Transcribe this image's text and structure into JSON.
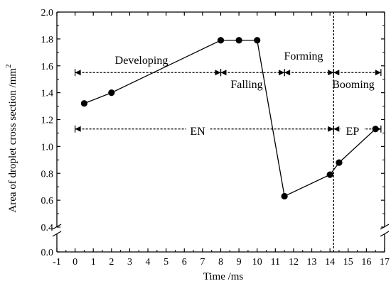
{
  "chart_data": {
    "type": "line",
    "xlabel": "Time /ms",
    "ylabel": "Area of droplet cross section /mm",
    "ylabel_sup": "2",
    "xlim": [
      -1,
      17
    ],
    "ylim": [
      0.0,
      2.0
    ],
    "y_axis_break": [
      0.0,
      0.4
    ],
    "grid": false,
    "x_ticks": [
      "-1",
      "0",
      "1",
      "2",
      "3",
      "4",
      "5",
      "6",
      "7",
      "8",
      "9",
      "10",
      "11",
      "12",
      "13",
      "14",
      "15",
      "16",
      "17"
    ],
    "y_ticks": [
      "0.0",
      "0.4",
      "0.6",
      "0.8",
      "1.0",
      "1.2",
      "1.4",
      "1.6",
      "1.8",
      "2.0"
    ],
    "y_tick_values": [
      0.0,
      0.4,
      0.6,
      0.8,
      1.0,
      1.2,
      1.4,
      1.6,
      1.8,
      2.0
    ],
    "series": [
      {
        "x": [
          0.5,
          2,
          8,
          9,
          10,
          11.5,
          14,
          14.5,
          16.5
        ],
        "y": [
          1.32,
          1.4,
          1.79,
          1.79,
          1.79,
          0.63,
          0.79,
          0.88,
          1.13
        ],
        "marker": "circle",
        "color": "#000000"
      }
    ],
    "vertical_line": {
      "x": 14.2,
      "style": "dashed"
    },
    "phase_spans": [
      {
        "label": "Developing",
        "x_start": 0,
        "x_end": 8,
        "y": 1.55
      },
      {
        "label": "Falling",
        "x_start": 8,
        "x_end": 11.5,
        "y": 1.55
      },
      {
        "label": "Forming",
        "x_start": 11.5,
        "x_end": 14.2,
        "y": 1.55
      },
      {
        "label": "Booming",
        "x_start": 14.2,
        "x_end": 16.8,
        "y": 1.55
      },
      {
        "label": "EN",
        "x_start": 0,
        "x_end": 14.2,
        "y": 1.13
      },
      {
        "label": "EP",
        "x_start": 14.2,
        "x_end": 16.8,
        "y": 1.13
      }
    ]
  }
}
